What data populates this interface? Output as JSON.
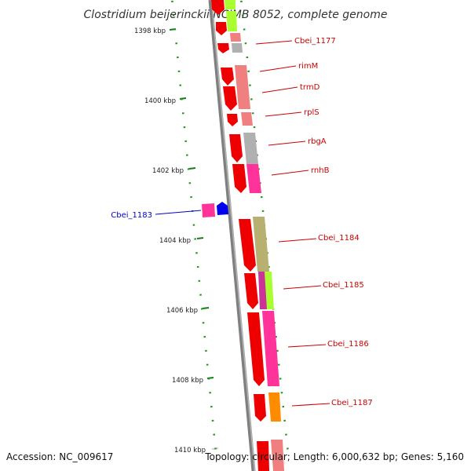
{
  "title": "Clostridium beijerinckii NCIMB 8052, complete genome",
  "footer": {
    "accession": "Accession: NC_009617",
    "summary": "Topology: circular; Length: 6,000,632 bp; Genes: 5,160"
  },
  "ruler": {
    "major_tick_color": "#1a7a1a",
    "minor_tick_color": "#1a9a1a",
    "labels": [
      "1398 kbp",
      "1400 kbp",
      "1402 kbp",
      "1404 kbp",
      "1406 kbp",
      "1408 kbp",
      "1410 kbp"
    ]
  },
  "gene_labels": [
    {
      "text": "Cbei_1177",
      "color": "#cc0000"
    },
    {
      "text": "rimM",
      "color": "#cc0000"
    },
    {
      "text": "trmD",
      "color": "#cc0000"
    },
    {
      "text": "rplS",
      "color": "#cc0000"
    },
    {
      "text": "rbgA",
      "color": "#cc0000"
    },
    {
      "text": "rnhB",
      "color": "#cc0000"
    },
    {
      "text": "Cbei_1183",
      "color": "#0000cc"
    },
    {
      "text": "Cbei_1184",
      "color": "#cc0000"
    },
    {
      "text": "Cbei_1185",
      "color": "#cc0000"
    },
    {
      "text": "Cbei_1186",
      "color": "#cc0000"
    },
    {
      "text": "Cbei_1187",
      "color": "#cc0000"
    }
  ],
  "colors": {
    "backbone": "#808080",
    "cds_forward": "#ee0000",
    "cds_reverse": "#0000ee",
    "category_pink_light": "#f08080",
    "category_pink": "#ff3399",
    "category_gray": "#b0b0b0",
    "category_lime": "#aaff33",
    "category_olive": "#b8b070",
    "category_orange": "#ff8c00"
  }
}
